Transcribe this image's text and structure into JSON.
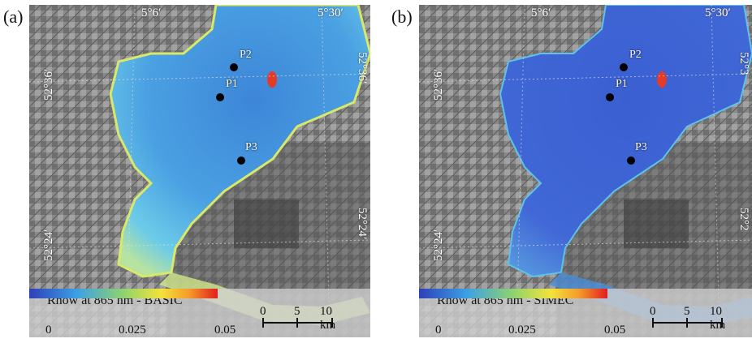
{
  "panels": [
    {
      "label": "(a)",
      "legend_title": "Rhow at 865 nm - BASIC",
      "colorbar_ticks": [
        "0",
        "0.025",
        "0.05"
      ],
      "water_color": "#5fb8ec",
      "deep_color": "#3b88d8",
      "coords": {
        "top_left": "5°6′",
        "top_right": "5°30′",
        "left_top": "52°36′",
        "left_bottom": "52°24′",
        "right_top": "52°36′",
        "right_bottom": "52°24′"
      },
      "points": [
        {
          "name": "P2"
        },
        {
          "name": "P1"
        },
        {
          "name": "P3"
        }
      ],
      "scale": {
        "ticks": [
          "0",
          "5",
          "10 km"
        ]
      }
    },
    {
      "label": "(b)",
      "legend_title": "Rhow at 865 nm - SIMEC",
      "colorbar_ticks": [
        "0",
        "0.025",
        "0.05"
      ],
      "water_color": "#3f6fd8",
      "deep_color": "#3a5fd0",
      "coords": {
        "top_left": "5°6′",
        "top_right": "5°30′",
        "left_top": "52°36′",
        "left_bottom": "52°24′",
        "right_top": "52°3",
        "right_bottom": "52°2"
      },
      "points": [
        {
          "name": "P2"
        },
        {
          "name": "P1"
        },
        {
          "name": "P3"
        }
      ],
      "scale": {
        "ticks": [
          "0",
          "5",
          "10 km"
        ]
      }
    }
  ]
}
